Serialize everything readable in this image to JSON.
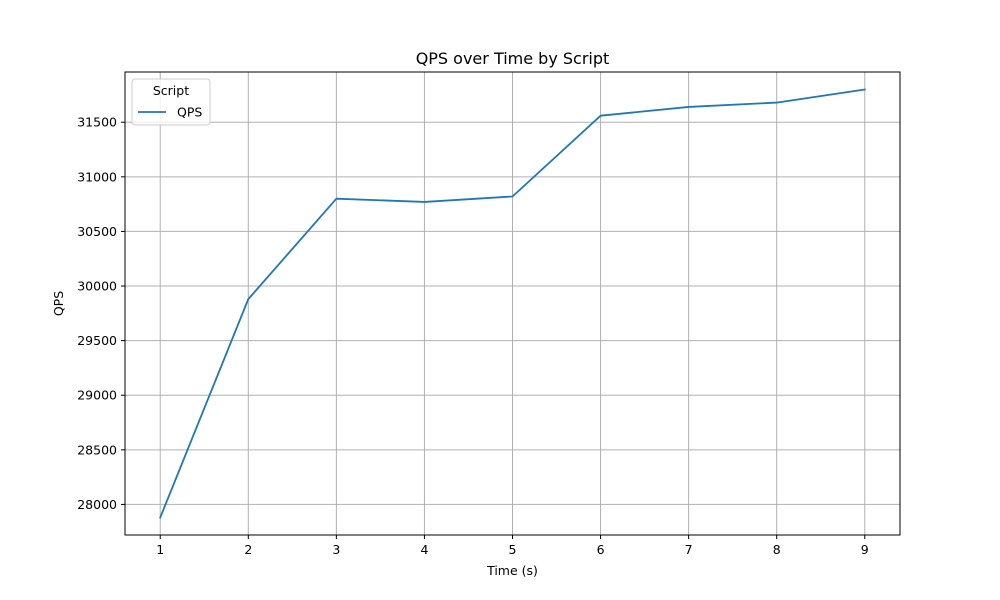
{
  "chart_data": {
    "type": "line",
    "title": "QPS over Time by Script",
    "xlabel": "Time (s)",
    "ylabel": "QPS",
    "x": [
      1,
      2,
      3,
      4,
      5,
      6,
      7,
      8,
      9
    ],
    "series": [
      {
        "name": "QPS",
        "color": "#1f77b4",
        "values": [
          27880,
          29880,
          30800,
          30770,
          30820,
          31560,
          31640,
          31680,
          31800
        ]
      }
    ],
    "xlim": [
      0.6,
      9.4
    ],
    "ylim": [
      27720,
      31960
    ],
    "xticks": [
      1,
      2,
      3,
      4,
      5,
      6,
      7,
      8,
      9
    ],
    "yticks": [
      28000,
      28500,
      29000,
      29500,
      30000,
      30500,
      31000,
      31500
    ],
    "grid": true,
    "legend": {
      "title": "Script",
      "placement": "top-left"
    }
  }
}
